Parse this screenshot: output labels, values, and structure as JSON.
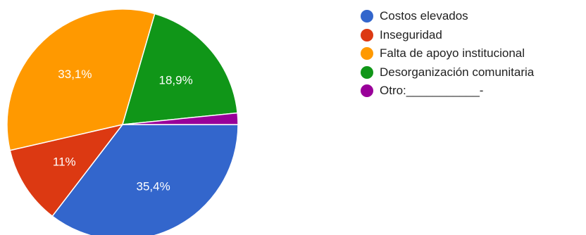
{
  "chart_data": {
    "type": "pie",
    "slices": [
      {
        "label": "Costos elevados",
        "value": 35.4,
        "value_label": "35,4%",
        "color": "#3366cc"
      },
      {
        "label": "Inseguridad",
        "value": 11,
        "value_label": "11%",
        "color": "#dc3912"
      },
      {
        "label": "Falta de apoyo institucional",
        "value": 33.1,
        "value_label": "33,1%",
        "color": "#ff9900"
      },
      {
        "label": "Desorganización comunitaria",
        "value": 18.9,
        "value_label": "18,9%",
        "color": "#109618"
      },
      {
        "label": "Otro:___________-",
        "value": 1.6,
        "value_label": "",
        "color": "#990099"
      }
    ],
    "start": "3 o'clock",
    "direction": "clockwise",
    "legend_position": "right"
  }
}
